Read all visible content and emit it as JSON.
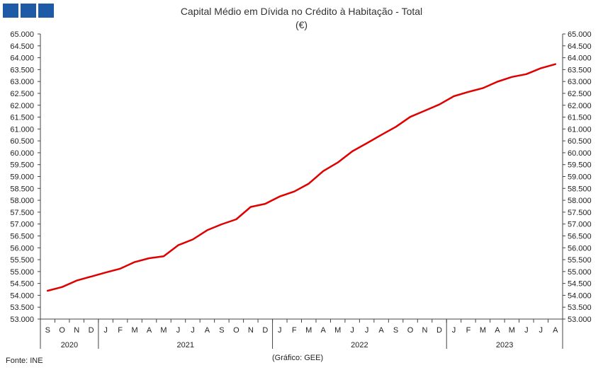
{
  "header": {
    "logo_name": "ine-logo"
  },
  "chart_data": {
    "type": "line",
    "title": "Capital Médio em Dívida no Crédito à Habitação - Total",
    "subtitle": "(€)",
    "xlabel": "",
    "ylabel": "",
    "ylim": [
      53000,
      65000
    ],
    "y_ticks": [
      "53.000",
      "53.500",
      "54.000",
      "54.500",
      "55.000",
      "55.500",
      "56.000",
      "56.500",
      "57.000",
      "57.500",
      "58.000",
      "58.500",
      "59.000",
      "59.500",
      "60.000",
      "60.500",
      "61.000",
      "61.500",
      "62.000",
      "62.500",
      "63.000",
      "63.500",
      "64.000",
      "64.500",
      "65.000"
    ],
    "categories": [
      "S",
      "O",
      "N",
      "D",
      "J",
      "F",
      "M",
      "A",
      "M",
      "J",
      "J",
      "A",
      "S",
      "O",
      "N",
      "D",
      "J",
      "F",
      "M",
      "A",
      "M",
      "J",
      "J",
      "A",
      "S",
      "O",
      "N",
      "D",
      "J",
      "F",
      "M",
      "A",
      "M",
      "J",
      "J",
      "A"
    ],
    "years": [
      {
        "label": "2020",
        "months": 4
      },
      {
        "label": "2021",
        "months": 12
      },
      {
        "label": "2022",
        "months": 12
      },
      {
        "label": "2023",
        "months": 8
      }
    ],
    "series": [
      {
        "color": "#e00000",
        "values": [
          54190,
          54350,
          54620,
          54790,
          54960,
          55120,
          55400,
          55560,
          55640,
          56110,
          56350,
          56740,
          56990,
          57200,
          57720,
          57850,
          58160,
          58370,
          58700,
          59230,
          59590,
          60060,
          60400,
          60750,
          61090,
          61510,
          61770,
          62030,
          62380,
          62560,
          62720,
          62990,
          63190,
          63310,
          63560,
          63730
        ]
      }
    ],
    "grid": false,
    "legend": "none"
  },
  "footer": {
    "source": "Fonte: INE",
    "credit": "(Gráfico: GEE)"
  }
}
